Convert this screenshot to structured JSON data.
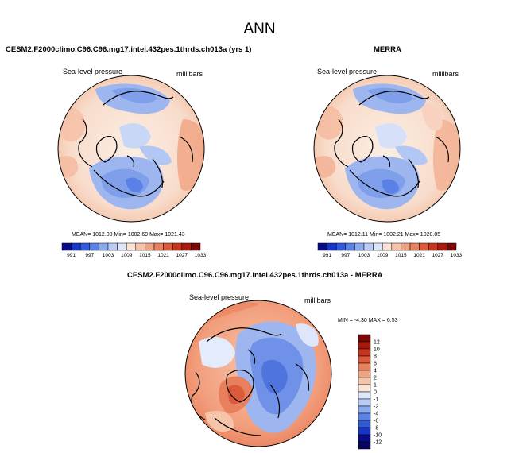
{
  "page": {
    "title": "ANN"
  },
  "chart_data": [
    {
      "type": "heatmap",
      "title": "CESM2.F2000climo.C96.C96.mg17.intel.432pes.1thrds.ch013a (yrs 1)",
      "variable_label": "Sea-level pressure",
      "units_label": "millibars",
      "stats_text": "MEAN= 1012.00   Min= 1002.69  Max= 1021.43",
      "stats": {
        "mean": 1012.0,
        "min": 1002.69,
        "max": 1021.43
      },
      "projection": "north polar stereographic",
      "colorbar": {
        "orientation": "horizontal",
        "ticks": [
          "991",
          "997",
          "1003",
          "1009",
          "1015",
          "1021",
          "1027",
          "1033"
        ],
        "colors": [
          "#0a0a8c",
          "#1535c8",
          "#2f5ad8",
          "#5a82e6",
          "#8aaaf0",
          "#b8ccf6",
          "#dde6fb",
          "#fbe4d6",
          "#f6c4ab",
          "#f0a382",
          "#e8805e",
          "#dc5a3c",
          "#c8351f",
          "#a81a10",
          "#7a0606"
        ]
      }
    },
    {
      "type": "heatmap",
      "title": "MERRA",
      "variable_label": "Sea-level pressure",
      "units_label": "millibars",
      "stats_text": "MEAN= 1012.11   Min= 1002.21  Max= 1020.05",
      "stats": {
        "mean": 1012.11,
        "min": 1002.21,
        "max": 1020.05
      },
      "projection": "north polar stereographic",
      "colorbar": {
        "orientation": "horizontal",
        "ticks": [
          "991",
          "997",
          "1003",
          "1009",
          "1015",
          "1021",
          "1027",
          "1033"
        ],
        "colors": [
          "#0a0a8c",
          "#1535c8",
          "#2f5ad8",
          "#5a82e6",
          "#8aaaf0",
          "#b8ccf6",
          "#dde6fb",
          "#fbe4d6",
          "#f6c4ab",
          "#f0a382",
          "#e8805e",
          "#dc5a3c",
          "#c8351f",
          "#a81a10",
          "#7a0606"
        ]
      }
    },
    {
      "type": "heatmap",
      "title": "CESM2.F2000climo.C96.C96.mg17.intel.432pes.1thrds.ch013a - MERRA",
      "variable_label": "Sea-level pressure",
      "units_label": "millibars",
      "stats_text": "MIN =  -4.30 MAX =   6.53",
      "stats": {
        "min": -4.3,
        "max": 6.53
      },
      "projection": "north polar stereographic",
      "colorbar": {
        "orientation": "vertical",
        "ticks": [
          "12",
          "10",
          "8",
          "6",
          "4",
          "2",
          "1",
          "0",
          "-1",
          "-2",
          "-4",
          "-6",
          "-8",
          "-10",
          "-12"
        ],
        "colors": [
          "#7a0606",
          "#a81a10",
          "#c8351f",
          "#dc5a3c",
          "#e8805e",
          "#f0a382",
          "#f6c4ab",
          "#fbe4d6",
          "#dde6fb",
          "#b8ccf6",
          "#8aaaf0",
          "#5a82e6",
          "#2f5ad8",
          "#1535c8",
          "#0a0a8c",
          "#060660"
        ]
      }
    }
  ]
}
